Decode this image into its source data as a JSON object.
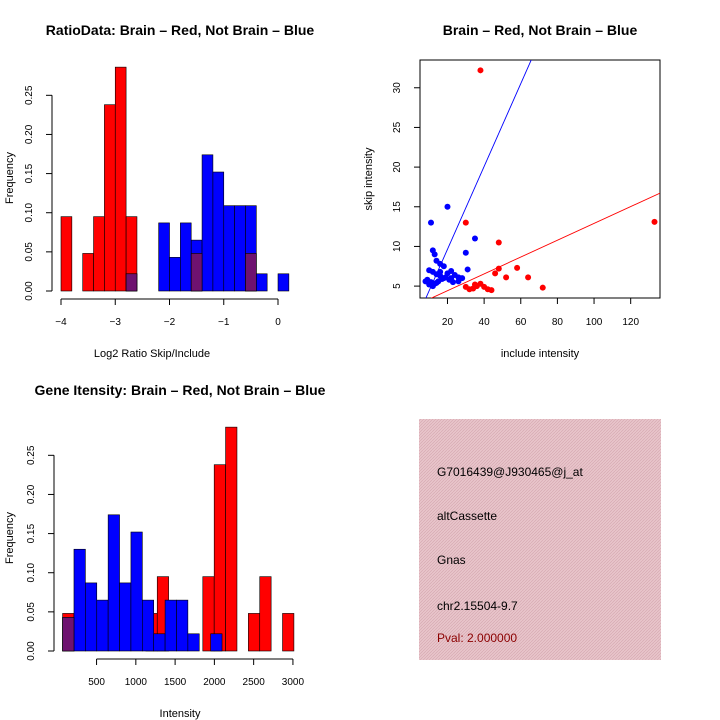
{
  "colors": {
    "red": "#ff0000",
    "blue": "#0000ff",
    "overlap": "#6e1270",
    "panel_bg": "#e8c4ca",
    "pval": "#8b0000"
  },
  "chart_data": [
    {
      "type": "histogram",
      "title": "RatioData: Brain – Red, Not Brain – Blue",
      "xlabel": "Log2 Ratio Skip/Include",
      "ylabel": "Frequency",
      "xlim": [
        -4.0,
        0.35
      ],
      "ylim": [
        0,
        0.29
      ],
      "xticks": [
        -4,
        -3,
        -2,
        -1,
        0
      ],
      "xtick_labels": [
        "−4",
        "−3",
        "−2",
        "−1",
        "0"
      ],
      "yticks": [
        0,
        0.05,
        0.1,
        0.15,
        0.2,
        0.25
      ],
      "ytick_labels": [
        "0.00",
        "0.05",
        "0.10",
        "0.15",
        "0.20",
        "0.25"
      ],
      "bin_width": 0.2,
      "series": [
        {
          "name": "Brain",
          "color": "red",
          "bins": [
            [
              -3.9,
              0.095
            ],
            [
              -3.5,
              0.048
            ],
            [
              -3.3,
              0.095
            ],
            [
              -3.1,
              0.238
            ],
            [
              -2.9,
              0.286
            ],
            [
              -2.7,
              0.095
            ],
            [
              -1.5,
              0.048
            ],
            [
              -0.5,
              0.048
            ]
          ]
        },
        {
          "name": "Not Brain",
          "color": "blue",
          "bins": [
            [
              -2.7,
              0.022
            ],
            [
              -2.1,
              0.087
            ],
            [
              -1.9,
              0.043
            ],
            [
              -1.7,
              0.087
            ],
            [
              -1.5,
              0.065
            ],
            [
              -1.3,
              0.174
            ],
            [
              -1.1,
              0.152
            ],
            [
              -0.9,
              0.109
            ],
            [
              -0.7,
              0.109
            ],
            [
              -0.5,
              0.109
            ],
            [
              -0.3,
              0.022
            ],
            [
              0.1,
              0.022
            ]
          ]
        }
      ]
    },
    {
      "type": "scatter",
      "title": "Brain – Red, Not Brain – Blue",
      "xlabel": "include intensity",
      "ylabel": "skip intensity",
      "xlim": [
        5,
        136
      ],
      "ylim": [
        3.5,
        33.5
      ],
      "xticks": [
        20,
        40,
        60,
        80,
        100,
        120
      ],
      "xtick_labels": [
        "20",
        "40",
        "60",
        "80",
        "100",
        "120"
      ],
      "yticks": [
        5,
        10,
        15,
        20,
        25,
        30
      ],
      "ytick_labels": [
        "5",
        "10",
        "15",
        "20",
        "25",
        "30"
      ],
      "series": [
        {
          "name": "Brain",
          "color": "red",
          "points": [
            [
              38,
              32.2
            ],
            [
              133,
              13.1
            ],
            [
              30,
              13.0
            ],
            [
              48,
              10.5
            ],
            [
              48,
              7.2
            ],
            [
              46,
              6.6
            ],
            [
              58,
              7.3
            ],
            [
              52,
              6.1
            ],
            [
              64,
              6.1
            ],
            [
              72,
              4.8
            ],
            [
              36,
              5.0
            ],
            [
              38,
              5.3
            ],
            [
              40,
              4.9
            ],
            [
              42,
              4.6
            ],
            [
              44,
              4.5
            ],
            [
              34,
              4.7
            ],
            [
              30,
              4.9
            ],
            [
              32,
              4.6
            ],
            [
              35,
              5.2
            ]
          ],
          "fit": {
            "slope": 0.106,
            "intercept": 2.3
          }
        },
        {
          "name": "Not Brain",
          "color": "blue",
          "points": [
            [
              11,
              13.0
            ],
            [
              20,
              15.0
            ],
            [
              35,
              11.0
            ],
            [
              12,
              9.5
            ],
            [
              13,
              9.0
            ],
            [
              30,
              9.2
            ],
            [
              31,
              7.1
            ],
            [
              14,
              8.2
            ],
            [
              16,
              7.8
            ],
            [
              18,
              7.5
            ],
            [
              10,
              7.0
            ],
            [
              12,
              6.8
            ],
            [
              14,
              6.5
            ],
            [
              16,
              6.3
            ],
            [
              18,
              6.0
            ],
            [
              20,
              6.6
            ],
            [
              22,
              6.0
            ],
            [
              24,
              6.4
            ],
            [
              26,
              6.1
            ],
            [
              28,
              6.0
            ],
            [
              9,
              5.8
            ],
            [
              11,
              5.5
            ],
            [
              13,
              5.3
            ],
            [
              15,
              5.6
            ],
            [
              17,
              5.9
            ],
            [
              19,
              6.1
            ],
            [
              21,
              5.8
            ],
            [
              23,
              5.5
            ],
            [
              10,
              5.2
            ],
            [
              12,
              5.0
            ],
            [
              14,
              5.4
            ],
            [
              16,
              6.8
            ],
            [
              22,
              6.9
            ],
            [
              26,
              5.6
            ],
            [
              8,
              5.6
            ]
          ],
          "fit": {
            "slope": 0.522,
            "intercept": -0.8
          }
        }
      ]
    },
    {
      "type": "histogram",
      "title": "Gene Itensity: Brain – Red, Not Brain – Blue",
      "xlabel": "Intensity",
      "ylabel": "Frequency",
      "xlim": [
        60,
        3090
      ],
      "ylim": [
        0,
        0.29
      ],
      "xticks": [
        500,
        1000,
        1500,
        2000,
        2500,
        3000
      ],
      "xtick_labels": [
        "500",
        "1000",
        "1500",
        "2000",
        "2500",
        "3000"
      ],
      "yticks": [
        0,
        0.05,
        0.1,
        0.15,
        0.2,
        0.25
      ],
      "ytick_labels": [
        "0.00",
        "0.05",
        "0.10",
        "0.15",
        "0.20",
        "0.25"
      ],
      "bin_width": 145,
      "series": [
        {
          "name": "Brain",
          "color": "red",
          "bins": [
            [
              140,
              0.048
            ],
            [
              1200,
              0.048
            ],
            [
              1345,
              0.095
            ],
            [
              1925,
              0.095
            ],
            [
              2070,
              0.238
            ],
            [
              2215,
              0.286
            ],
            [
              2505,
              0.048
            ],
            [
              2650,
              0.095
            ],
            [
              2940,
              0.048
            ]
          ]
        },
        {
          "name": "Not Brain",
          "color": "blue",
          "bins": [
            [
              140,
              0.043
            ],
            [
              285,
              0.13
            ],
            [
              430,
              0.087
            ],
            [
              575,
              0.065
            ],
            [
              720,
              0.174
            ],
            [
              865,
              0.087
            ],
            [
              1010,
              0.152
            ],
            [
              1155,
              0.065
            ],
            [
              1300,
              0.022
            ],
            [
              1445,
              0.065
            ],
            [
              1590,
              0.065
            ],
            [
              1735,
              0.022
            ],
            [
              2025,
              0.022
            ]
          ]
        }
      ]
    }
  ],
  "info_panel": {
    "probe": "G7016439@J930465@j_at",
    "event_type": "altCassette",
    "gene": "Gnas",
    "location": "chr2.15504-9.7",
    "pval": "Pval: 2.000000"
  }
}
